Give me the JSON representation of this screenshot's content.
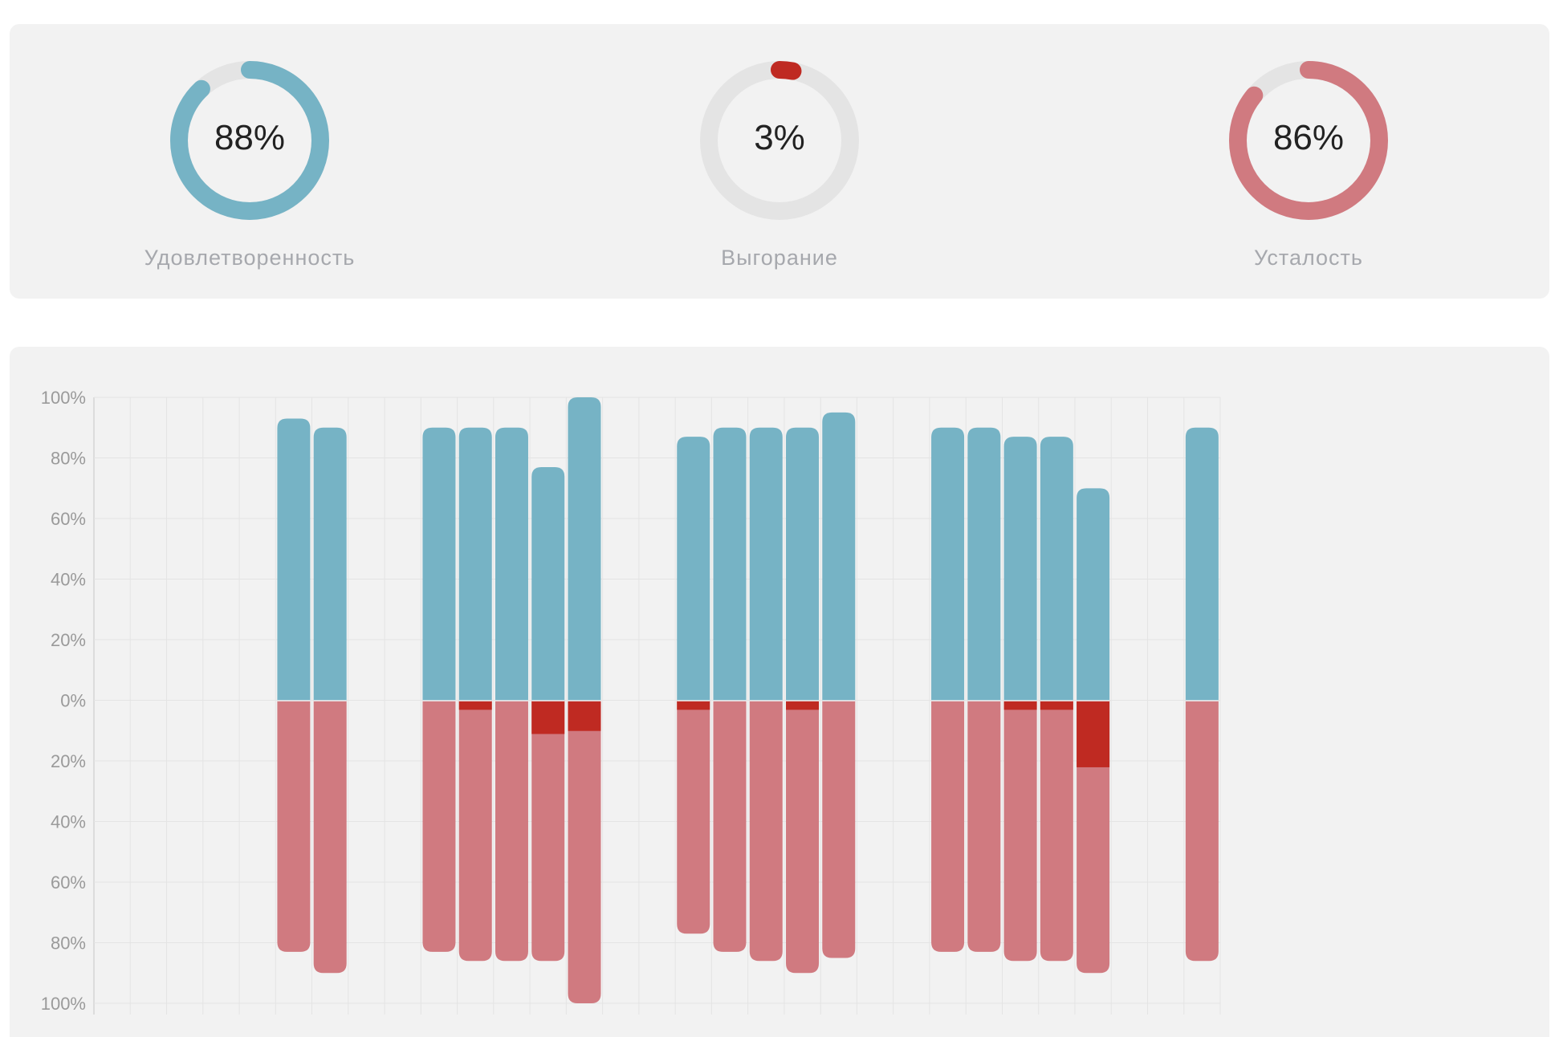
{
  "gauges": [
    {
      "label": "Удовлетворенность",
      "value_text": "88%",
      "value": 88,
      "color": "#76b3c5"
    },
    {
      "label": "Выгорание",
      "value_text": "3%",
      "value": 3,
      "color": "#bf2a22"
    },
    {
      "label": "Усталость",
      "value_text": "86%",
      "value": 86,
      "color": "#d07a80"
    }
  ],
  "chart_data": {
    "type": "bar",
    "ylim": [
      -100,
      100
    ],
    "y_tick_labels": [
      "100%",
      "80%",
      "60%",
      "40%",
      "20%",
      "0%",
      "20%",
      "40%",
      "60%",
      "80%",
      "100%"
    ],
    "slot_count": 31,
    "grid": true,
    "colors": {
      "positive": "#76b3c5",
      "negative": "#d07a80",
      "burnout": "#bf2a22"
    },
    "bars": [
      {
        "slot": 5,
        "up": 93,
        "down": 83,
        "burn": 0
      },
      {
        "slot": 6,
        "up": 90,
        "down": 90,
        "burn": 0
      },
      {
        "slot": 9,
        "up": 90,
        "down": 83,
        "burn": 0
      },
      {
        "slot": 10,
        "up": 90,
        "down": 86,
        "burn": 3
      },
      {
        "slot": 11,
        "up": 90,
        "down": 86,
        "burn": 0
      },
      {
        "slot": 12,
        "up": 77,
        "down": 86,
        "burn": 11
      },
      {
        "slot": 13,
        "up": 100,
        "down": 100,
        "burn": 10
      },
      {
        "slot": 16,
        "up": 87,
        "down": 77,
        "burn": 3
      },
      {
        "slot": 17,
        "up": 90,
        "down": 83,
        "burn": 0
      },
      {
        "slot": 18,
        "up": 90,
        "down": 86,
        "burn": 0
      },
      {
        "slot": 19,
        "up": 90,
        "down": 90,
        "burn": 3
      },
      {
        "slot": 20,
        "up": 95,
        "down": 85,
        "burn": 0
      },
      {
        "slot": 23,
        "up": 90,
        "down": 83,
        "burn": 0
      },
      {
        "slot": 24,
        "up": 90,
        "down": 83,
        "burn": 0
      },
      {
        "slot": 25,
        "up": 87,
        "down": 86,
        "burn": 3
      },
      {
        "slot": 26,
        "up": 87,
        "down": 86,
        "burn": 3
      },
      {
        "slot": 27,
        "up": 70,
        "down": 90,
        "burn": 22
      },
      {
        "slot": 30,
        "up": 90,
        "down": 86,
        "burn": 0
      }
    ]
  }
}
